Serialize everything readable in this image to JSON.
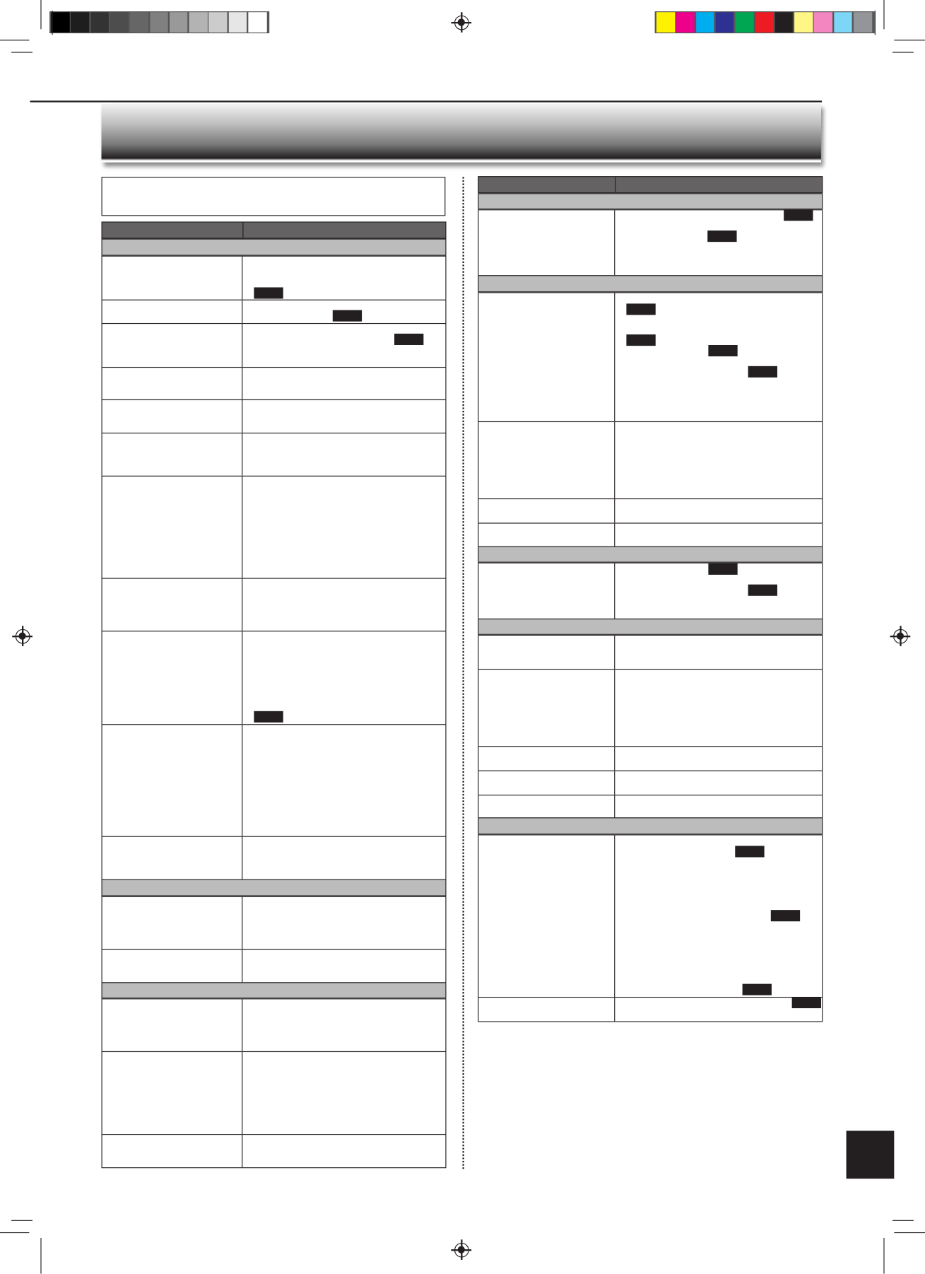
{
  "color_bar": {
    "grayscale": [
      "#000000",
      "#1e1e1e",
      "#333333",
      "#4d4d4d",
      "#666666",
      "#808080",
      "#999999",
      "#b3b3b3",
      "#cccccc",
      "#e6e6e6",
      "#ffffff"
    ],
    "process": [
      "#fff200",
      "#ec008c",
      "#00aeef",
      "#2e3192",
      "#00a651",
      "#ed1c24",
      "#231f20",
      "#fff685",
      "#f386c0",
      "#7dd6f6",
      "#939598"
    ]
  },
  "colors": {
    "table_header": "#646263",
    "section_row": "#bcbcbc",
    "rule": "#231f20",
    "page_tab": "#231f20"
  }
}
